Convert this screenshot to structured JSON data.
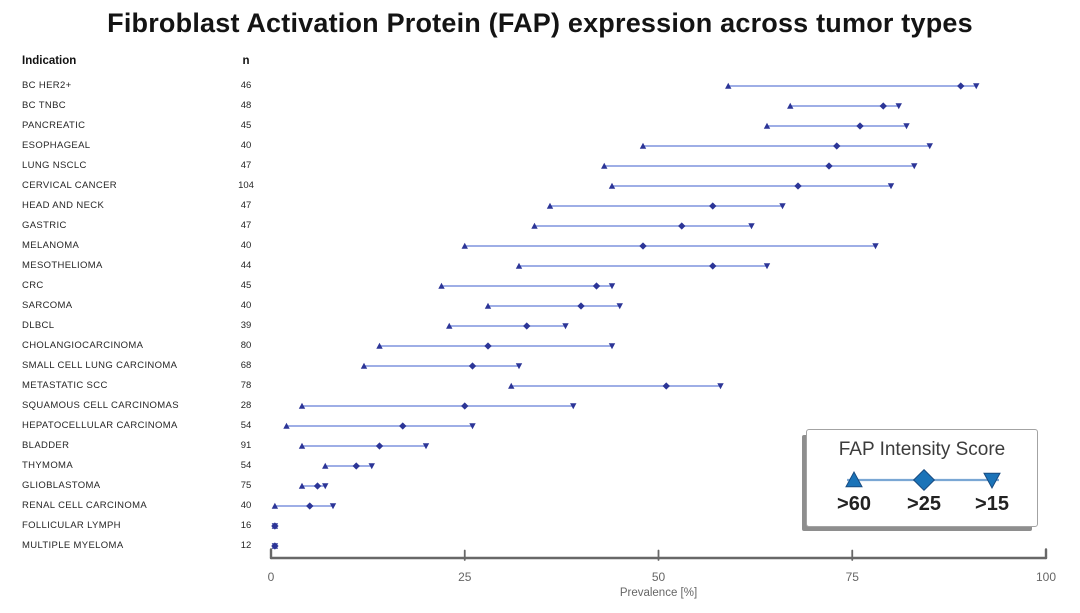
{
  "title": "Fibroblast Activation Protein (FAP) expression across tumor types",
  "table": {
    "indication_header": "Indication",
    "n_header": "n"
  },
  "axis": {
    "label": "Prevalence [%]",
    "ticks": [
      0,
      25,
      50,
      75,
      100
    ],
    "min": 0,
    "max": 100
  },
  "legend": {
    "title": "FAP Intensity Score",
    "items": [
      {
        "marker": "triangle-up",
        "label": ">60"
      },
      {
        "marker": "diamond",
        "label": ">25"
      },
      {
        "marker": "triangle-down",
        "label": ">15"
      }
    ]
  },
  "colors": {
    "range_line": "#7e93de",
    "marker": "#2c3597",
    "legend_marker_fill": "#1b73b8",
    "legend_marker_stroke": "#174a80",
    "legend_line": "#7aa7d4",
    "axis": "#686868",
    "axis_text": "#666666"
  },
  "chart_data": {
    "type": "scatter",
    "subtype": "dot-range (forest-style), one row per tumor indication",
    "title": "Fibroblast Activation Protein (FAP) expression across tumor types",
    "xlabel": "Prevalence [%]",
    "xlim": [
      0,
      100
    ],
    "series_meaning": "Per row: prevalence of FAP intensity score >60 (triangle-up), >25 (diamond), >15 (triangle-down), joined by a line",
    "rows": [
      {
        "indication": "BC HER2+",
        "n": 46,
        "gt60": 59,
        "gt25": 89,
        "gt15": 91
      },
      {
        "indication": "BC TNBC",
        "n": 48,
        "gt60": 67,
        "gt25": 79,
        "gt15": 81
      },
      {
        "indication": "PANCREATIC",
        "n": 45,
        "gt60": 64,
        "gt25": 76,
        "gt15": 82
      },
      {
        "indication": "ESOPHAGEAL",
        "n": 40,
        "gt60": 48,
        "gt25": 73,
        "gt15": 85
      },
      {
        "indication": "LUNG NSCLC",
        "n": 47,
        "gt60": 43,
        "gt25": 72,
        "gt15": 83
      },
      {
        "indication": "CERVICAL CANCER",
        "n": 104,
        "gt60": 44,
        "gt25": 68,
        "gt15": 80
      },
      {
        "indication": "HEAD AND NECK",
        "n": 47,
        "gt60": 36,
        "gt25": 57,
        "gt15": 66
      },
      {
        "indication": "GASTRIC",
        "n": 47,
        "gt60": 34,
        "gt25": 53,
        "gt15": 62
      },
      {
        "indication": "MELANOMA",
        "n": 40,
        "gt60": 25,
        "gt25": 48,
        "gt15": 78
      },
      {
        "indication": "MESOTHELIOMA",
        "n": 44,
        "gt60": 32,
        "gt25": 57,
        "gt15": 64
      },
      {
        "indication": "CRC",
        "n": 45,
        "gt60": 22,
        "gt25": 42,
        "gt15": 44
      },
      {
        "indication": "SARCOMA",
        "n": 40,
        "gt60": 28,
        "gt25": 40,
        "gt15": 45
      },
      {
        "indication": "DLBCL",
        "n": 39,
        "gt60": 23,
        "gt25": 33,
        "gt15": 38
      },
      {
        "indication": "CHOLANGIOCARCINOMA",
        "n": 80,
        "gt60": 14,
        "gt25": 28,
        "gt15": 44
      },
      {
        "indication": "SMALL CELL LUNG CARCINOMA",
        "n": 68,
        "gt60": 12,
        "gt25": 26,
        "gt15": 32
      },
      {
        "indication": "METASTATIC SCC",
        "n": 78,
        "gt60": 31,
        "gt25": 51,
        "gt15": 58
      },
      {
        "indication": "SQUAMOUS CELL CARCINOMAS",
        "n": 28,
        "gt60": 4,
        "gt25": 25,
        "gt15": 39
      },
      {
        "indication": "HEPATOCELLULAR CARCINOMA",
        "n": 54,
        "gt60": 2,
        "gt25": 17,
        "gt15": 26
      },
      {
        "indication": "BLADDER",
        "n": 91,
        "gt60": 4,
        "gt25": 14,
        "gt15": 20
      },
      {
        "indication": "THYMOMA",
        "n": 54,
        "gt60": 7,
        "gt25": 11,
        "gt15": 13
      },
      {
        "indication": "GLIOBLASTOMA",
        "n": 75,
        "gt60": 4,
        "gt25": 6,
        "gt15": 7
      },
      {
        "indication": "RENAL CELL CARCINOMA",
        "n": 40,
        "gt60": 0.5,
        "gt25": 5,
        "gt15": 8
      },
      {
        "indication": "FOLLICULAR LYMPH",
        "n": 16,
        "gt60": 0.5,
        "gt25": 0.5,
        "gt15": 0.5
      },
      {
        "indication": "MULTIPLE MYELOMA",
        "n": 12,
        "gt60": 0.5,
        "gt25": 0.5,
        "gt15": 0.5
      }
    ]
  }
}
